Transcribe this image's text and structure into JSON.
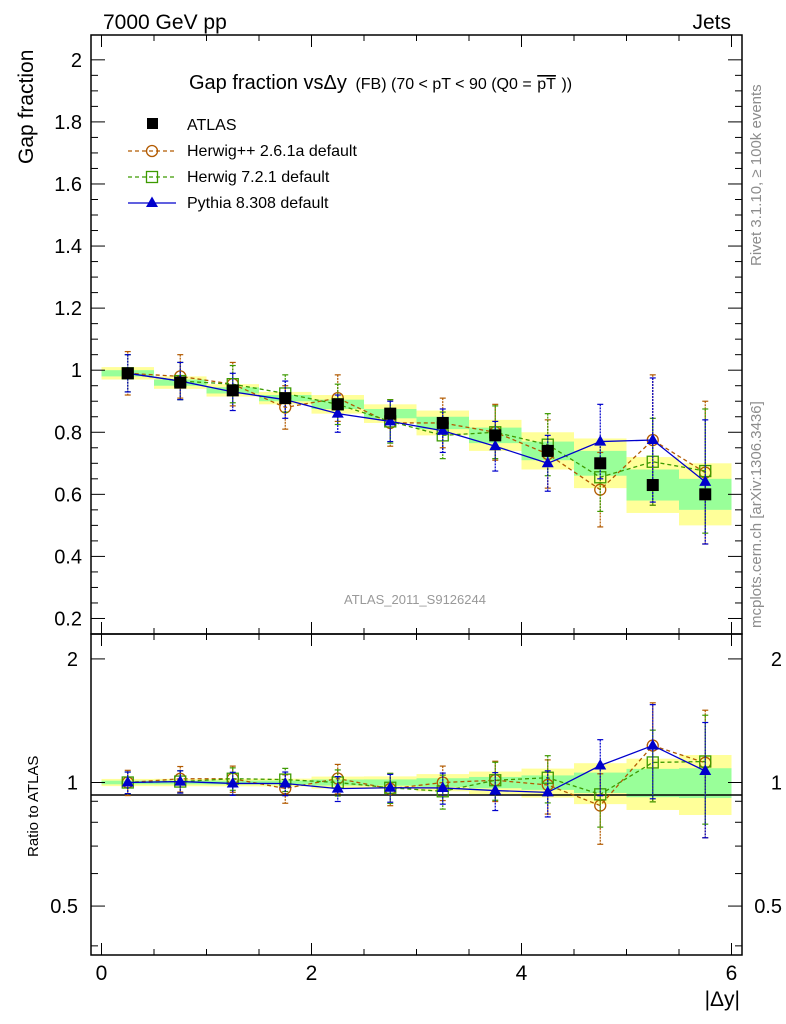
{
  "header": {
    "left": "7000 GeV pp",
    "right": "Jets"
  },
  "side_labels": {
    "rivet": "Rivet 3.1.10, ≥ 100k events",
    "mcplots": "mcplots.cern.ch [arXiv:1306.3436]"
  },
  "watermark": "ATLAS_2011_S9126244",
  "chart_data": {
    "type": "scatter",
    "title": {
      "main": "Gap fraction vsΔy",
      "detail": "(FB) (70 < pT <  90 (Q0 =",
      "pt_bar": "pT",
      "close": "))"
    },
    "xlabel": "|Δy|",
    "ylabel": "Gap fraction",
    "ratio_ylabel": "Ratio to ATLAS",
    "xlim": [
      -0.1,
      6.1
    ],
    "ylim": [
      0.15,
      2.08
    ],
    "ratio_ylim": [
      0.38,
      2.3
    ],
    "x_ticks": [
      0,
      2,
      4,
      6
    ],
    "y_ticks": [
      0.2,
      0.4,
      0.6,
      0.8,
      1,
      1.2,
      1.4,
      1.6,
      1.8,
      2
    ],
    "ratio_ticks": [
      0.5,
      1,
      2
    ],
    "bins": [
      [
        0,
        0.5
      ],
      [
        0.5,
        1
      ],
      [
        1,
        1.5
      ],
      [
        1.5,
        2
      ],
      [
        2,
        2.5
      ],
      [
        2.5,
        3
      ],
      [
        3,
        3.5
      ],
      [
        3.5,
        4
      ],
      [
        4,
        4.5
      ],
      [
        4.5,
        5
      ],
      [
        5,
        5.5
      ],
      [
        5.5,
        6
      ]
    ],
    "x": [
      0.25,
      0.75,
      1.25,
      1.75,
      2.25,
      2.75,
      3.25,
      3.75,
      4.25,
      4.75,
      5.25,
      5.75
    ],
    "data": {
      "name": "ATLAS",
      "values": [
        0.99,
        0.96,
        0.935,
        0.91,
        0.89,
        0.86,
        0.83,
        0.79,
        0.74,
        0.7,
        0.63,
        0.6
      ],
      "stat_band": [
        0.01,
        0.01,
        0.01,
        0.01,
        0.015,
        0.015,
        0.02,
        0.025,
        0.03,
        0.04,
        0.05,
        0.05
      ],
      "total_band": [
        0.02,
        0.02,
        0.02,
        0.02,
        0.03,
        0.03,
        0.04,
        0.05,
        0.06,
        0.08,
        0.09,
        0.1
      ]
    },
    "series": [
      {
        "name": "Herwig++ 2.6.1a default",
        "color": "#b25a00",
        "marker": "open-circle",
        "dashed": true,
        "values": [
          0.99,
          0.98,
          0.955,
          0.88,
          0.91,
          0.83,
          0.83,
          0.8,
          0.73,
          0.615,
          0.775,
          0.67
        ],
        "errors": [
          0.07,
          0.07,
          0.07,
          0.07,
          0.075,
          0.075,
          0.08,
          0.09,
          0.11,
          0.12,
          0.21,
          0.23
        ]
      },
      {
        "name": "Herwig 7.2.1 default",
        "color": "#3c9a00",
        "marker": "open-square",
        "dashed": true,
        "values": [
          0.99,
          0.965,
          0.955,
          0.925,
          0.89,
          0.835,
          0.79,
          0.8,
          0.76,
          0.655,
          0.705,
          0.675
        ],
        "errors": [
          0.06,
          0.06,
          0.06,
          0.06,
          0.065,
          0.07,
          0.075,
          0.085,
          0.1,
          0.11,
          0.14,
          0.2
        ]
      },
      {
        "name": "Pythia 8.308 default",
        "color": "#0000cc",
        "marker": "filled-triangle",
        "dashed": false,
        "values": [
          0.99,
          0.965,
          0.93,
          0.905,
          0.86,
          0.835,
          0.805,
          0.755,
          0.7,
          0.77,
          0.775,
          0.64
        ],
        "errors": [
          0.06,
          0.06,
          0.06,
          0.06,
          0.06,
          0.065,
          0.07,
          0.08,
          0.09,
          0.12,
          0.2,
          0.2
        ]
      }
    ]
  }
}
